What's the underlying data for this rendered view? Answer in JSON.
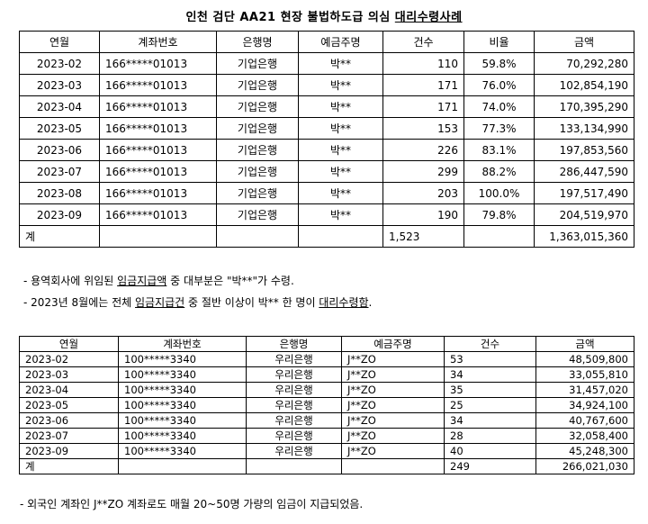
{
  "title": {
    "prefix": "인천 검단 AA21 현장 불법하도급 의심 ",
    "underlined": "대리수령사례"
  },
  "table1": {
    "headers": [
      "연월",
      "계좌번호",
      "은행명",
      "예금주명",
      "건수",
      "비율",
      "금액"
    ],
    "rows": [
      [
        "2023-02",
        "166*****01013",
        "기업은행",
        "박**",
        "110",
        "59.8%",
        "70,292,280"
      ],
      [
        "2023-03",
        "166*****01013",
        "기업은행",
        "박**",
        "171",
        "76.0%",
        "102,854,190"
      ],
      [
        "2023-04",
        "166*****01013",
        "기업은행",
        "박**",
        "171",
        "74.0%",
        "170,395,290"
      ],
      [
        "2023-05",
        "166*****01013",
        "기업은행",
        "박**",
        "153",
        "77.3%",
        "133,134,990"
      ],
      [
        "2023-06",
        "166*****01013",
        "기업은행",
        "박**",
        "226",
        "83.1%",
        "197,853,560"
      ],
      [
        "2023-07",
        "166*****01013",
        "기업은행",
        "박**",
        "299",
        "88.2%",
        "286,447,590"
      ],
      [
        "2023-08",
        "166*****01013",
        "기업은행",
        "박**",
        "203",
        "100.0%",
        "197,517,490"
      ],
      [
        "2023-09",
        "166*****01013",
        "기업은행",
        "박**",
        "190",
        "79.8%",
        "204,519,970"
      ]
    ],
    "total": {
      "label": "계",
      "count": "1,523",
      "amount": "1,363,015,360"
    }
  },
  "notes1": [
    {
      "prefix": "- 용역회사에 위임된 ",
      "underlined": "임금지급액",
      "suffix": " 중 대부분은 \"박**\"가 수령."
    },
    {
      "prefix": "- 2023년 8월에는 전체 ",
      "underlined": "임금지급건",
      "middle": " 중 절반 이상이 박** 한 명이 ",
      "underlined2": "대리수령함",
      "suffix": "."
    }
  ],
  "table2": {
    "headers": [
      "연월",
      "계좌번호",
      "은행명",
      "예금주명",
      "건수",
      "금액"
    ],
    "rows": [
      [
        "2023-02",
        "100*****3340",
        "우리은행",
        "J**ZO",
        "53",
        "48,509,800"
      ],
      [
        "2023-03",
        "100*****3340",
        "우리은행",
        "J**ZO",
        "34",
        "33,055,810"
      ],
      [
        "2023-04",
        "100*****3340",
        "우리은행",
        "J**ZO",
        "35",
        "31,457,020"
      ],
      [
        "2023-05",
        "100*****3340",
        "우리은행",
        "J**ZO",
        "25",
        "34,924,100"
      ],
      [
        "2023-06",
        "100*****3340",
        "우리은행",
        "J**ZO",
        "34",
        "40,767,600"
      ],
      [
        "2023-07",
        "100*****3340",
        "우리은행",
        "J**ZO",
        "28",
        "32,058,400"
      ],
      [
        "2023-09",
        "100*****3340",
        "우리은행",
        "J**ZO",
        "40",
        "45,248,300"
      ]
    ],
    "total": {
      "label": "계",
      "count": "249",
      "amount": "266,021,030"
    }
  },
  "note2": "- 외국인 계좌인 J**ZO 계좌로도 매월 20~50명 가량의 임금이 지급되었음."
}
